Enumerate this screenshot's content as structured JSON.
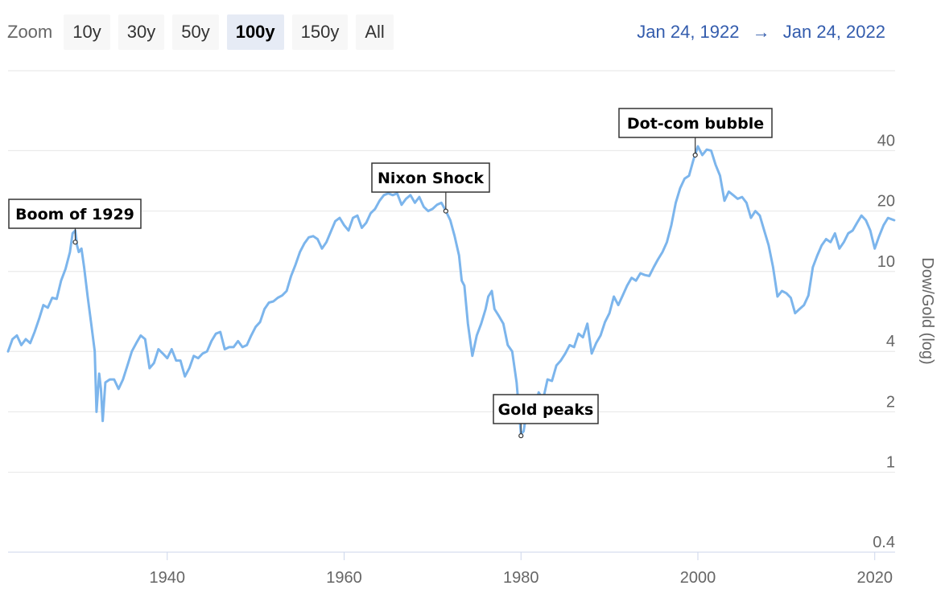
{
  "zoom": {
    "label": "Zoom",
    "buttons": [
      "10y",
      "30y",
      "50y",
      "100y",
      "150y",
      "All"
    ],
    "active": "100y"
  },
  "range": {
    "from": "Jan 24, 1922",
    "arrow": "→",
    "to": "Jan 24, 2022"
  },
  "colors": {
    "series": "#7cb5ec",
    "grid": "#e6e6e6",
    "text": "#666666",
    "range": "#335cad"
  },
  "chart_data": {
    "type": "line",
    "title": "",
    "xlabel": "",
    "ylabel": "Dow/Gold (log)",
    "yscale": "log",
    "xlim": [
      1922,
      2022.3
    ],
    "ylim": [
      0.4,
      100
    ],
    "x_ticks": [
      1940,
      1960,
      1980,
      2000,
      2020
    ],
    "y_ticks": [
      {
        "value": 0.4,
        "label": "0.4"
      },
      {
        "value": 1,
        "label": "1"
      },
      {
        "value": 2,
        "label": "2"
      },
      {
        "value": 4,
        "label": "4"
      },
      {
        "value": 10,
        "label": "10"
      },
      {
        "value": 20,
        "label": "20"
      },
      {
        "value": 40,
        "label": "40"
      }
    ],
    "series": [
      {
        "name": "Dow/Gold",
        "points": [
          [
            1922,
            4.0
          ],
          [
            1922.5,
            4.6
          ],
          [
            1923,
            4.8
          ],
          [
            1923.5,
            4.3
          ],
          [
            1924,
            4.6
          ],
          [
            1924.5,
            4.4
          ],
          [
            1925,
            5.0
          ],
          [
            1925.5,
            5.8
          ],
          [
            1926,
            6.8
          ],
          [
            1926.5,
            6.6
          ],
          [
            1927,
            7.4
          ],
          [
            1927.5,
            7.3
          ],
          [
            1928,
            9.0
          ],
          [
            1928.5,
            10.3
          ],
          [
            1929,
            12.5
          ],
          [
            1929.3,
            15.5
          ],
          [
            1929.6,
            16.0
          ],
          [
            1929.8,
            13.5
          ],
          [
            1930,
            12.5
          ],
          [
            1930.3,
            13.0
          ],
          [
            1930.6,
            10.5
          ],
          [
            1931,
            7.5
          ],
          [
            1931.4,
            5.5
          ],
          [
            1931.8,
            4.0
          ],
          [
            1932.0,
            2.0
          ],
          [
            1932.3,
            3.1
          ],
          [
            1932.5,
            2.6
          ],
          [
            1932.7,
            1.8
          ],
          [
            1933,
            2.8
          ],
          [
            1933.5,
            2.9
          ],
          [
            1934,
            2.9
          ],
          [
            1934.5,
            2.6
          ],
          [
            1935,
            2.9
          ],
          [
            1935.5,
            3.4
          ],
          [
            1936,
            4.0
          ],
          [
            1936.5,
            4.4
          ],
          [
            1937,
            4.8
          ],
          [
            1937.5,
            4.6
          ],
          [
            1938,
            3.3
          ],
          [
            1938.5,
            3.5
          ],
          [
            1939,
            4.1
          ],
          [
            1939.5,
            3.9
          ],
          [
            1940,
            3.7
          ],
          [
            1940.5,
            4.1
          ],
          [
            1941,
            3.6
          ],
          [
            1941.5,
            3.6
          ],
          [
            1942,
            3.0
          ],
          [
            1942.5,
            3.3
          ],
          [
            1943,
            3.8
          ],
          [
            1943.5,
            3.7
          ],
          [
            1944,
            3.9
          ],
          [
            1944.5,
            4.0
          ],
          [
            1945,
            4.5
          ],
          [
            1945.5,
            4.9
          ],
          [
            1946,
            5.0
          ],
          [
            1946.5,
            4.1
          ],
          [
            1947,
            4.2
          ],
          [
            1947.5,
            4.2
          ],
          [
            1948,
            4.5
          ],
          [
            1948.5,
            4.2
          ],
          [
            1949,
            4.3
          ],
          [
            1949.5,
            4.8
          ],
          [
            1950,
            5.3
          ],
          [
            1950.5,
            5.6
          ],
          [
            1951,
            6.5
          ],
          [
            1951.5,
            7.0
          ],
          [
            1952,
            7.1
          ],
          [
            1952.5,
            7.4
          ],
          [
            1953,
            7.6
          ],
          [
            1953.5,
            8.0
          ],
          [
            1954,
            9.5
          ],
          [
            1954.5,
            10.8
          ],
          [
            1955,
            12.5
          ],
          [
            1955.5,
            13.8
          ],
          [
            1956,
            14.8
          ],
          [
            1956.5,
            15.0
          ],
          [
            1957,
            14.5
          ],
          [
            1957.5,
            13.0
          ],
          [
            1958,
            14.0
          ],
          [
            1958.5,
            15.8
          ],
          [
            1959,
            17.8
          ],
          [
            1959.5,
            18.5
          ],
          [
            1960,
            17.0
          ],
          [
            1960.5,
            16.0
          ],
          [
            1961,
            18.5
          ],
          [
            1961.5,
            19.0
          ],
          [
            1962,
            16.5
          ],
          [
            1962.5,
            17.5
          ],
          [
            1963,
            19.5
          ],
          [
            1963.5,
            20.5
          ],
          [
            1964,
            22.5
          ],
          [
            1964.5,
            24.0
          ],
          [
            1965,
            24.5
          ],
          [
            1965.5,
            24.0
          ],
          [
            1966,
            24.5
          ],
          [
            1966.5,
            21.5
          ],
          [
            1967,
            23.0
          ],
          [
            1967.5,
            24.0
          ],
          [
            1968,
            22.0
          ],
          [
            1968.5,
            23.5
          ],
          [
            1969,
            21.0
          ],
          [
            1969.5,
            20.0
          ],
          [
            1970,
            20.5
          ],
          [
            1970.5,
            21.5
          ],
          [
            1971,
            22.0
          ],
          [
            1971.5,
            20.0
          ],
          [
            1972,
            18.0
          ],
          [
            1972.5,
            15.0
          ],
          [
            1973,
            12.0
          ],
          [
            1973.3,
            9.0
          ],
          [
            1973.6,
            8.5
          ],
          [
            1974,
            5.5
          ],
          [
            1974.5,
            3.8
          ],
          [
            1975,
            4.8
          ],
          [
            1975.5,
            5.5
          ],
          [
            1976,
            6.5
          ],
          [
            1976.3,
            7.5
          ],
          [
            1976.7,
            8.0
          ],
          [
            1977,
            6.5
          ],
          [
            1977.5,
            6.0
          ],
          [
            1978,
            5.5
          ],
          [
            1978.5,
            4.3
          ],
          [
            1979,
            4.0
          ],
          [
            1979.5,
            2.8
          ],
          [
            1980,
            1.55
          ],
          [
            1980.3,
            1.6
          ],
          [
            1980.6,
            1.95
          ],
          [
            1981,
            2.2
          ],
          [
            1981.3,
            2.4
          ],
          [
            1981.6,
            2.1
          ],
          [
            1982,
            2.5
          ],
          [
            1982.5,
            2.3
          ],
          [
            1983,
            2.9
          ],
          [
            1983.5,
            2.85
          ],
          [
            1984,
            3.4
          ],
          [
            1984.5,
            3.6
          ],
          [
            1985,
            3.9
          ],
          [
            1985.5,
            4.3
          ],
          [
            1986,
            4.2
          ],
          [
            1986.5,
            4.9
          ],
          [
            1987,
            4.7
          ],
          [
            1987.5,
            5.5
          ],
          [
            1988,
            3.9
          ],
          [
            1988.5,
            4.4
          ],
          [
            1989,
            4.8
          ],
          [
            1989.5,
            5.6
          ],
          [
            1990,
            6.2
          ],
          [
            1990.5,
            7.5
          ],
          [
            1991,
            6.8
          ],
          [
            1991.5,
            7.6
          ],
          [
            1992,
            8.5
          ],
          [
            1992.5,
            9.3
          ],
          [
            1993,
            9.0
          ],
          [
            1993.5,
            9.8
          ],
          [
            1994,
            9.6
          ],
          [
            1994.5,
            9.5
          ],
          [
            1995,
            10.5
          ],
          [
            1995.5,
            11.5
          ],
          [
            1996,
            12.5
          ],
          [
            1996.5,
            14.0
          ],
          [
            1997,
            17.0
          ],
          [
            1997.5,
            22.0
          ],
          [
            1998,
            26.0
          ],
          [
            1998.5,
            29.0
          ],
          [
            1999,
            30.0
          ],
          [
            1999.5,
            36.0
          ],
          [
            2000,
            42.0
          ],
          [
            2000.5,
            38.0
          ],
          [
            2001,
            40.5
          ],
          [
            2001.5,
            40.0
          ],
          [
            2002,
            34.0
          ],
          [
            2002.5,
            30.0
          ],
          [
            2003,
            22.5
          ],
          [
            2003.5,
            25.0
          ],
          [
            2004,
            24.0
          ],
          [
            2004.5,
            23.0
          ],
          [
            2005,
            23.5
          ],
          [
            2005.5,
            22.0
          ],
          [
            2006,
            18.5
          ],
          [
            2006.5,
            20.0
          ],
          [
            2007,
            19.0
          ],
          [
            2007.5,
            16.0
          ],
          [
            2008,
            13.5
          ],
          [
            2008.5,
            10.5
          ],
          [
            2009,
            7.5
          ],
          [
            2009.5,
            8.0
          ],
          [
            2010,
            7.8
          ],
          [
            2010.5,
            7.4
          ],
          [
            2011,
            6.2
          ],
          [
            2011.5,
            6.5
          ],
          [
            2012,
            6.8
          ],
          [
            2012.5,
            7.6
          ],
          [
            2013,
            10.5
          ],
          [
            2013.5,
            12.0
          ],
          [
            2014,
            13.5
          ],
          [
            2014.5,
            14.5
          ],
          [
            2015,
            14.0
          ],
          [
            2015.5,
            15.5
          ],
          [
            2016,
            13.0
          ],
          [
            2016.5,
            14.0
          ],
          [
            2017,
            15.5
          ],
          [
            2017.5,
            16.0
          ],
          [
            2018,
            17.5
          ],
          [
            2018.5,
            19.0
          ],
          [
            2019,
            18.0
          ],
          [
            2019.5,
            16.0
          ],
          [
            2020,
            13.0
          ],
          [
            2020.5,
            15.0
          ],
          [
            2021,
            17.0
          ],
          [
            2021.5,
            18.5
          ],
          [
            2022.2,
            18.0
          ]
        ]
      }
    ],
    "annotations": [
      {
        "text": "Boom of 1929",
        "x": 1929.6,
        "y": 14.0
      },
      {
        "text": "Nixon Shock",
        "x": 1971.5,
        "y": 20.0
      },
      {
        "text": "Gold peaks",
        "x": 1980,
        "y": 1.52
      },
      {
        "text": "Dot-com bubble",
        "x": 1999.7,
        "y": 38.0
      }
    ]
  }
}
